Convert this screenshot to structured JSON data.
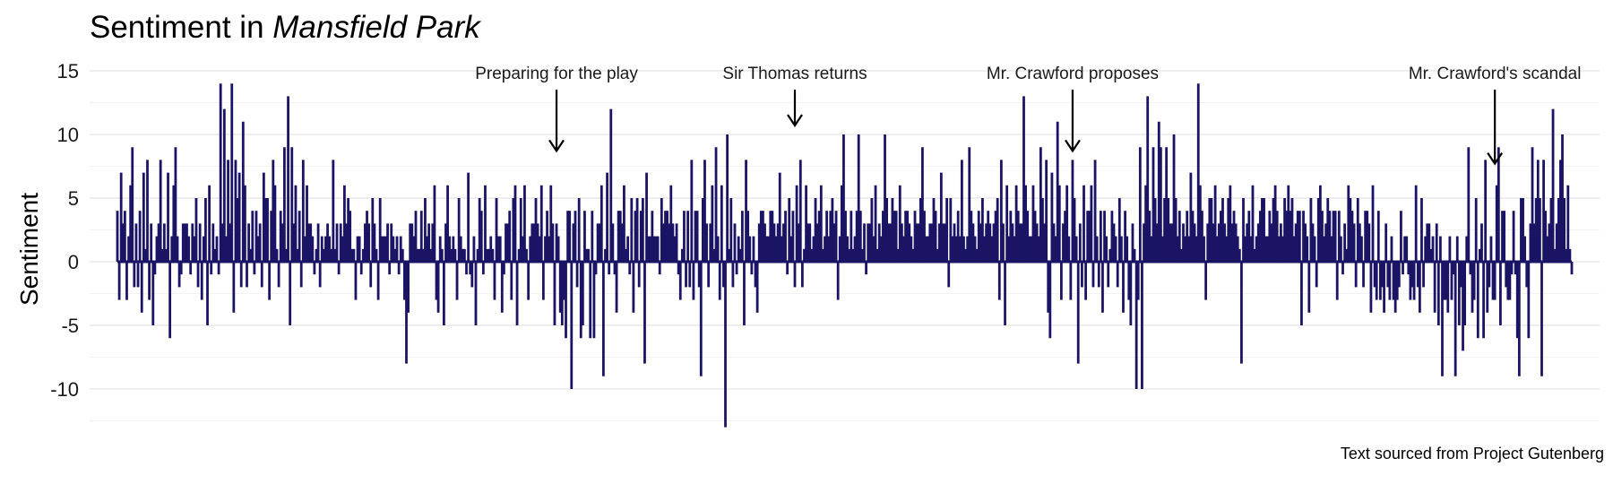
{
  "chart_data": {
    "type": "bar",
    "title_prefix": "Sentiment in ",
    "title_italic": "Mansfield Park",
    "xlabel": "",
    "ylabel": "Sentiment",
    "caption": "Text sourced from Project Gutenberg",
    "ylim": [
      -13,
      15
    ],
    "yticks": [
      15,
      10,
      5,
      0,
      -5,
      -10
    ],
    "ytick_labels": [
      "15",
      "10",
      "5",
      "0",
      "-5",
      "-10"
    ],
    "grid": true,
    "n_points": 810,
    "bar_color": "#1b1464",
    "values": [
      4,
      -3,
      7,
      3,
      4,
      -3,
      2,
      6,
      9,
      -2,
      3,
      -2,
      4,
      -4,
      7,
      1,
      8,
      -3,
      3,
      -5,
      -1,
      2,
      3,
      8,
      1,
      3,
      1,
      7,
      -6,
      2,
      6,
      9,
      2,
      -2,
      -1,
      3,
      3,
      3,
      2,
      -1,
      3,
      2,
      5,
      -2,
      3,
      -3,
      2,
      5,
      -5,
      6,
      -1,
      3,
      1,
      2,
      -1,
      14,
      3,
      12,
      2,
      8,
      3,
      14,
      -4,
      8,
      5,
      7,
      -2,
      11,
      6,
      -2,
      3,
      1,
      4,
      -1,
      4,
      2,
      3,
      -2,
      7,
      5,
      5,
      -3,
      4,
      8,
      6,
      1,
      -2,
      4,
      3,
      9,
      1,
      13,
      -5,
      9,
      3,
      6,
      1,
      4,
      -2,
      8,
      2,
      6,
      3,
      3,
      2,
      -1,
      1,
      3,
      -2,
      2,
      1,
      2,
      3,
      2,
      1,
      8,
      1,
      3,
      -1,
      3,
      2,
      6,
      3,
      5,
      4,
      1,
      1,
      -3,
      2,
      2,
      -1,
      1,
      3,
      4,
      3,
      -2,
      5,
      3,
      1,
      -3,
      5,
      2,
      2,
      2,
      3,
      -1,
      3,
      2,
      1,
      2,
      -1,
      2,
      1,
      -3,
      -8,
      -4,
      3,
      3,
      2,
      4,
      1,
      1,
      4,
      1,
      5,
      2,
      3,
      1,
      3,
      6,
      -3,
      -4,
      2,
      1,
      -5,
      3,
      6,
      2,
      1,
      2,
      1,
      -3,
      5,
      2,
      1,
      1,
      -1,
      7,
      -1,
      -2,
      2,
      -5,
      1,
      5,
      4,
      -1,
      6,
      1,
      1,
      2,
      1,
      -3,
      5,
      2,
      2,
      -4,
      -1,
      3,
      3,
      4,
      -3,
      5,
      6,
      -5,
      1,
      5,
      2,
      6,
      1,
      -3,
      2,
      3,
      3,
      5,
      3,
      2,
      6,
      -3,
      2,
      4,
      2,
      6,
      3,
      -5,
      3,
      2,
      -4,
      -5,
      -3,
      -6,
      4,
      4,
      -10,
      3,
      4,
      -2,
      5,
      -6,
      -5,
      4,
      1,
      1,
      -6,
      4,
      -6,
      -1,
      3,
      3,
      6,
      -9,
      1,
      7,
      -1,
      12,
      3,
      -1,
      -4,
      4,
      4,
      3,
      6,
      1,
      2,
      -1,
      5,
      -4,
      4,
      5,
      -2,
      4,
      5,
      -8,
      7,
      2,
      2,
      4,
      2,
      2,
      2,
      -1,
      5,
      3,
      4,
      4,
      3,
      6,
      3,
      2,
      3,
      -1,
      -3,
      1,
      4,
      -2,
      4,
      -2,
      8,
      -3,
      4,
      4,
      -2,
      -9,
      5,
      8,
      3,
      -2,
      3,
      6,
      1,
      9,
      2,
      -3,
      6,
      -2,
      -13,
      10,
      1,
      5,
      -2,
      3,
      -1,
      2,
      1,
      4,
      -5,
      8,
      4,
      2,
      -1,
      2,
      -2,
      -4,
      3,
      4,
      4,
      3,
      2,
      2,
      4,
      4,
      3,
      2,
      3,
      7,
      2,
      3,
      4,
      -1,
      5,
      2,
      4,
      -2,
      6,
      3,
      8,
      -2,
      1,
      6,
      3,
      3,
      1,
      2,
      5,
      3,
      4,
      6,
      1,
      2,
      4,
      2,
      4,
      5,
      3,
      4,
      -3,
      2,
      6,
      10,
      4,
      2,
      1,
      4,
      1,
      2,
      4,
      10,
      4,
      1,
      3,
      -1,
      3,
      3,
      5,
      2,
      6,
      1,
      3,
      2,
      4,
      10,
      5,
      3,
      3,
      5,
      4,
      4,
      1,
      6,
      3,
      2,
      4,
      4,
      3,
      2,
      1,
      4,
      3,
      3,
      5,
      9,
      4,
      2,
      2,
      3,
      3,
      5,
      4,
      1,
      3,
      7,
      3,
      3,
      5,
      -2,
      5,
      2,
      3,
      2,
      4,
      2,
      8,
      2,
      1,
      2,
      9,
      4,
      3,
      2,
      1,
      4,
      3,
      5,
      2,
      3,
      4,
      3,
      2,
      3,
      4,
      5,
      -3,
      8,
      3,
      -5,
      6,
      2,
      4,
      3,
      2,
      6,
      4,
      3,
      3,
      13,
      6,
      4,
      2,
      2,
      6,
      4,
      3,
      2,
      9,
      5,
      3,
      8,
      -4,
      -6,
      7,
      3,
      2,
      11,
      6,
      -3,
      3,
      4,
      6,
      2,
      -3,
      8,
      5,
      2,
      -8,
      3,
      -2,
      6,
      -3,
      4,
      4,
      6,
      -2,
      8,
      2,
      -2,
      4,
      -4,
      4,
      2,
      -2,
      1,
      4,
      3,
      2,
      -2,
      5,
      2,
      -4,
      4,
      2,
      -3,
      -5,
      3,
      1,
      -10,
      -3,
      9,
      -10,
      3,
      6,
      13,
      4,
      2,
      9,
      5,
      3,
      11,
      9,
      2,
      5,
      9,
      5,
      3,
      3,
      10,
      5,
      2,
      4,
      1,
      3,
      2,
      4,
      2,
      7,
      4,
      3,
      2,
      14,
      6,
      4,
      2,
      -3,
      3,
      5,
      5,
      3,
      6,
      2,
      3,
      4,
      5,
      3,
      2,
      5,
      6,
      3,
      4,
      3,
      2,
      1,
      -8,
      5,
      2,
      3,
      4,
      2,
      6,
      1,
      2,
      3,
      4,
      5,
      5,
      2,
      2,
      4,
      3,
      5,
      6,
      4,
      2,
      3,
      2,
      5,
      4,
      6,
      4,
      5,
      2,
      3,
      4,
      4,
      -5,
      4,
      3,
      2,
      -4,
      5,
      3,
      2,
      -2,
      5,
      6,
      4,
      2,
      3,
      5,
      4,
      2,
      4,
      4,
      -3,
      4,
      2,
      -1,
      3,
      1,
      6,
      5,
      4,
      3,
      -2,
      5,
      3,
      2,
      -2,
      4,
      4,
      3,
      -4,
      6,
      -2,
      -3,
      4,
      -3,
      -2,
      -4,
      3,
      -2,
      -3,
      2,
      -3,
      -4,
      -3,
      -2,
      4,
      -1,
      2,
      2,
      -1,
      -3,
      -2,
      -3,
      6,
      -2,
      -4,
      5,
      -2,
      2,
      3,
      3,
      1,
      2,
      -4,
      3,
      -5,
      2,
      -9,
      -3,
      -3,
      -4,
      2,
      -3,
      -1,
      -9,
      2,
      -5,
      -2,
      -7,
      -5,
      2,
      9,
      -1,
      -4,
      -3,
      5,
      -6,
      1,
      3,
      -6,
      8,
      -4,
      -2,
      2,
      -3,
      -3,
      6,
      9,
      -5,
      4,
      4,
      -2,
      -3,
      -3,
      -1,
      4,
      -1,
      -6,
      -9,
      5,
      5,
      2,
      -2,
      -6,
      3,
      9,
      3,
      5,
      8,
      5,
      -9,
      8,
      4,
      2,
      3,
      5,
      12,
      1,
      3,
      5,
      8,
      10,
      5,
      1,
      6,
      1,
      -1
    ],
    "annotations": [
      {
        "label": "Preparing for the play",
        "index": 234,
        "value": 8
      },
      {
        "label": "Sir Thomas returns",
        "index": 361,
        "value": 10
      },
      {
        "label": "Mr. Crawford proposes",
        "index": 509,
        "value": 8
      },
      {
        "label": "Mr. Crawford's scandal",
        "index": 734,
        "value": 7
      }
    ]
  }
}
